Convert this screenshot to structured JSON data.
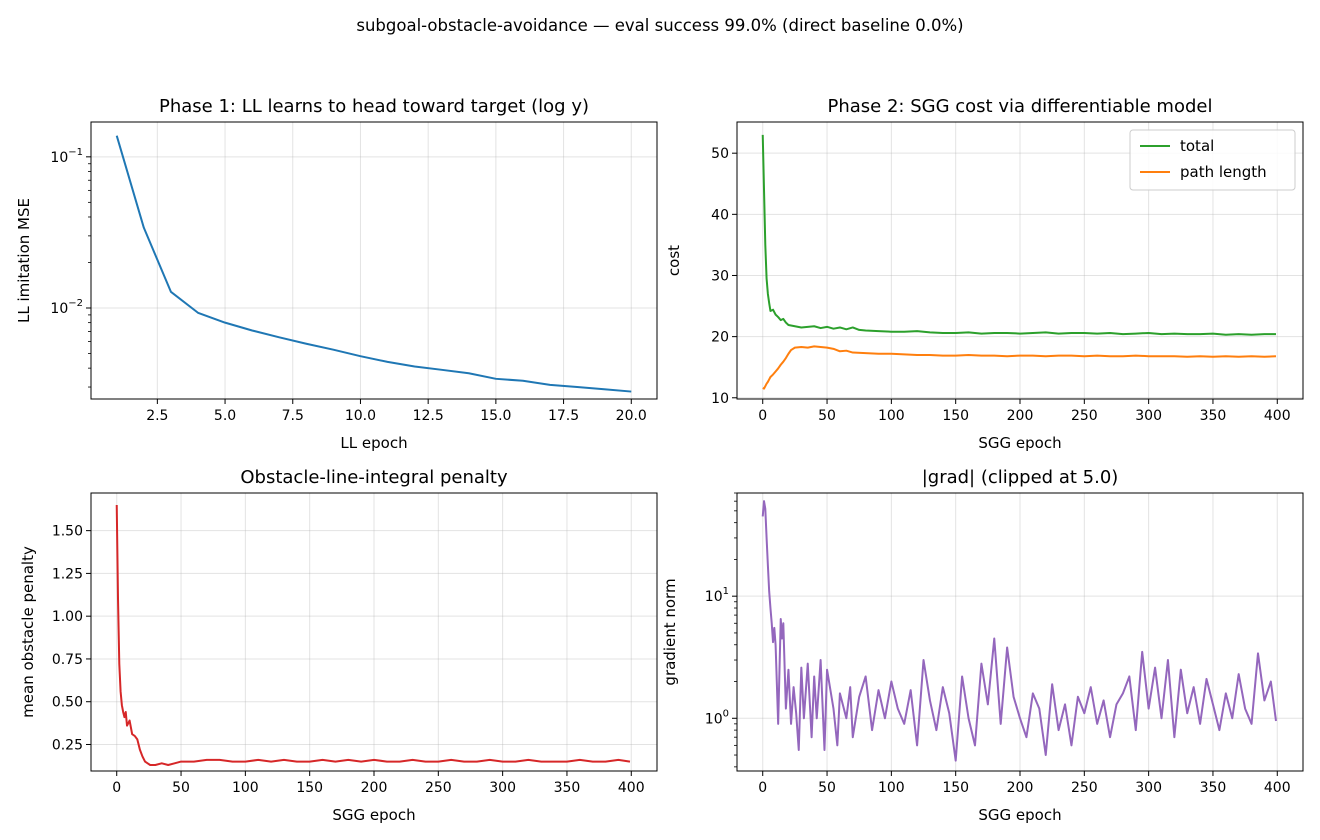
{
  "figure": {
    "suptitle": "subgoal-obstacle-avoidance — eval success 99.0%  (direct baseline 0.0%)"
  },
  "chart_data": [
    {
      "id": "p1",
      "type": "line",
      "title": "Phase 1: LL learns to head toward target (log y)",
      "xlabel": "LL epoch",
      "ylabel": "LL imitation MSE",
      "yscale": "log",
      "xlim": [
        0.05,
        20.95
      ],
      "ylim": [
        0.0025,
        0.17
      ],
      "xticks": [
        2.5,
        5.0,
        7.5,
        10.0,
        12.5,
        15.0,
        17.5,
        20.0
      ],
      "xtick_labels": [
        "2.5",
        "5.0",
        "7.5",
        "10.0",
        "12.5",
        "15.0",
        "17.5",
        "20.0"
      ],
      "yticks": [
        0.01,
        0.1
      ],
      "ytick_labels": [
        "10^-2",
        "10^-1"
      ],
      "grid": true,
      "series": [
        {
          "color": "#1f77b4",
          "x": [
            1,
            2,
            3,
            4,
            5,
            6,
            7,
            8,
            9,
            10,
            11,
            12,
            13,
            14,
            15,
            16,
            17,
            18,
            19,
            20
          ],
          "y": [
            0.138,
            0.034,
            0.0128,
            0.0093,
            0.008,
            0.0071,
            0.0064,
            0.0058,
            0.0053,
            0.0048,
            0.0044,
            0.0041,
            0.0039,
            0.0037,
            0.0034,
            0.0033,
            0.0031,
            0.003,
            0.0029,
            0.0028
          ]
        }
      ]
    },
    {
      "id": "p2",
      "type": "line",
      "title": "Phase 2: SGG cost via differentiable model",
      "xlabel": "SGG epoch",
      "ylabel": "cost",
      "yscale": "linear",
      "xlim": [
        -20,
        420
      ],
      "ylim": [
        9.8,
        55.1
      ],
      "xticks": [
        0,
        50,
        100,
        150,
        200,
        250,
        300,
        350,
        400
      ],
      "xtick_labels": [
        "0",
        "50",
        "100",
        "150",
        "200",
        "250",
        "300",
        "350",
        "400"
      ],
      "yticks": [
        10,
        20,
        30,
        40,
        50
      ],
      "ytick_labels": [
        "10",
        "20",
        "30",
        "40",
        "50"
      ],
      "grid": true,
      "legend": "top-right",
      "series": [
        {
          "name": "total",
          "color": "#2ca02c",
          "x": [
            0,
            1,
            2,
            3,
            4,
            5,
            6,
            8,
            10,
            12,
            14,
            16,
            18,
            20,
            25,
            30,
            35,
            40,
            45,
            50,
            55,
            60,
            65,
            70,
            75,
            80,
            90,
            100,
            110,
            120,
            130,
            140,
            150,
            160,
            170,
            180,
            190,
            200,
            210,
            220,
            230,
            240,
            250,
            260,
            270,
            280,
            290,
            300,
            310,
            320,
            330,
            340,
            350,
            360,
            370,
            380,
            390,
            399
          ],
          "y": [
            53.0,
            44.0,
            35.0,
            29.5,
            27.0,
            25.5,
            24.2,
            24.4,
            23.6,
            23.2,
            22.7,
            22.9,
            22.3,
            21.9,
            21.7,
            21.5,
            21.6,
            21.7,
            21.4,
            21.6,
            21.3,
            21.5,
            21.2,
            21.5,
            21.1,
            21.0,
            20.9,
            20.8,
            20.8,
            20.9,
            20.7,
            20.6,
            20.6,
            20.7,
            20.5,
            20.6,
            20.6,
            20.5,
            20.6,
            20.7,
            20.5,
            20.6,
            20.6,
            20.5,
            20.6,
            20.4,
            20.5,
            20.6,
            20.4,
            20.5,
            20.4,
            20.4,
            20.5,
            20.3,
            20.4,
            20.3,
            20.4,
            20.4
          ]
        },
        {
          "name": "path length",
          "color": "#ff7f0e",
          "x": [
            0,
            1,
            2,
            3,
            4,
            5,
            6,
            8,
            10,
            12,
            14,
            16,
            18,
            20,
            22,
            25,
            30,
            35,
            40,
            45,
            50,
            55,
            60,
            65,
            70,
            80,
            90,
            100,
            110,
            120,
            130,
            140,
            150,
            160,
            170,
            180,
            190,
            200,
            210,
            220,
            230,
            240,
            250,
            260,
            270,
            280,
            290,
            300,
            310,
            320,
            330,
            340,
            350,
            360,
            370,
            380,
            390,
            399
          ],
          "y": [
            11.6,
            11.5,
            11.9,
            12.3,
            12.6,
            13.0,
            13.4,
            13.8,
            14.3,
            14.8,
            15.4,
            15.9,
            16.5,
            17.2,
            17.8,
            18.2,
            18.3,
            18.2,
            18.4,
            18.3,
            18.2,
            18.0,
            17.6,
            17.7,
            17.4,
            17.3,
            17.2,
            17.2,
            17.1,
            17.0,
            17.0,
            16.9,
            16.9,
            17.0,
            16.9,
            16.9,
            16.8,
            16.9,
            16.9,
            16.8,
            16.9,
            16.9,
            16.8,
            16.9,
            16.8,
            16.8,
            16.9,
            16.8,
            16.8,
            16.8,
            16.7,
            16.8,
            16.7,
            16.8,
            16.7,
            16.8,
            16.7,
            16.8
          ]
        }
      ]
    },
    {
      "id": "p3",
      "type": "line",
      "title": "Obstacle-line-integral penalty",
      "xlabel": "SGG epoch",
      "ylabel": "mean obstacle penalty",
      "yscale": "linear",
      "xlim": [
        -20,
        420
      ],
      "ylim": [
        0.095,
        1.72
      ],
      "xticks": [
        0,
        50,
        100,
        150,
        200,
        250,
        300,
        350,
        400
      ],
      "xtick_labels": [
        "0",
        "50",
        "100",
        "150",
        "200",
        "250",
        "300",
        "350",
        "400"
      ],
      "yticks": [
        0.25,
        0.5,
        0.75,
        1.0,
        1.25,
        1.5
      ],
      "ytick_labels": [
        "0.25",
        "0.50",
        "0.75",
        "1.00",
        "1.25",
        "1.50"
      ],
      "grid": true,
      "series": [
        {
          "color": "#d62728",
          "x": [
            0,
            1,
            2,
            3,
            4,
            5,
            6,
            7,
            8,
            10,
            12,
            14,
            16,
            18,
            20,
            22,
            24,
            26,
            28,
            30,
            35,
            40,
            45,
            50,
            60,
            70,
            80,
            90,
            100,
            110,
            120,
            130,
            140,
            150,
            160,
            170,
            180,
            190,
            200,
            210,
            220,
            230,
            240,
            250,
            260,
            270,
            280,
            290,
            300,
            310,
            320,
            330,
            340,
            350,
            360,
            370,
            380,
            390,
            399
          ],
          "y": [
            1.65,
            1.1,
            0.72,
            0.56,
            0.48,
            0.44,
            0.41,
            0.44,
            0.36,
            0.39,
            0.31,
            0.3,
            0.28,
            0.22,
            0.18,
            0.15,
            0.14,
            0.13,
            0.13,
            0.13,
            0.14,
            0.13,
            0.14,
            0.15,
            0.15,
            0.16,
            0.16,
            0.15,
            0.15,
            0.16,
            0.15,
            0.16,
            0.15,
            0.15,
            0.16,
            0.15,
            0.16,
            0.15,
            0.16,
            0.15,
            0.15,
            0.16,
            0.15,
            0.15,
            0.16,
            0.15,
            0.15,
            0.16,
            0.15,
            0.15,
            0.16,
            0.15,
            0.15,
            0.15,
            0.16,
            0.15,
            0.15,
            0.16,
            0.15
          ]
        }
      ]
    },
    {
      "id": "p4",
      "type": "line",
      "title": "|grad| (clipped at 5.0)",
      "xlabel": "SGG epoch",
      "ylabel": "gradient norm",
      "yscale": "log",
      "xlim": [
        -20,
        420
      ],
      "ylim": [
        0.37,
        70
      ],
      "xticks": [
        0,
        50,
        100,
        150,
        200,
        250,
        300,
        350,
        400
      ],
      "xtick_labels": [
        "0",
        "50",
        "100",
        "150",
        "200",
        "250",
        "300",
        "350",
        "400"
      ],
      "yticks": [
        1,
        10
      ],
      "ytick_labels": [
        "10^0",
        "10^1"
      ],
      "grid": true,
      "series": [
        {
          "color": "#9467bd",
          "x": [
            0,
            1,
            2,
            3,
            4,
            5,
            6,
            7,
            8,
            9,
            10,
            12,
            14,
            15,
            16,
            18,
            20,
            22,
            24,
            26,
            28,
            30,
            32,
            35,
            38,
            40,
            42,
            45,
            48,
            50,
            55,
            58,
            60,
            65,
            68,
            70,
            75,
            80,
            85,
            90,
            95,
            100,
            105,
            110,
            115,
            120,
            125,
            130,
            135,
            140,
            145,
            150,
            155,
            160,
            165,
            170,
            175,
            180,
            185,
            190,
            195,
            200,
            205,
            210,
            215,
            220,
            225,
            230,
            235,
            240,
            245,
            250,
            255,
            260,
            265,
            270,
            275,
            280,
            285,
            290,
            295,
            300,
            305,
            310,
            315,
            320,
            325,
            330,
            335,
            340,
            345,
            350,
            355,
            360,
            365,
            370,
            375,
            380,
            385,
            390,
            395,
            399
          ],
          "y": [
            45,
            60,
            52,
            30,
            18,
            11,
            8,
            6,
            4.2,
            5.5,
            4.0,
            0.9,
            6.5,
            4.5,
            6.0,
            1.2,
            2.5,
            0.9,
            1.8,
            1.1,
            0.55,
            2.6,
            1.0,
            2.8,
            0.7,
            2.2,
            1.0,
            3.0,
            0.55,
            2.5,
            1.2,
            0.6,
            1.6,
            1.0,
            1.8,
            0.7,
            1.5,
            2.2,
            0.8,
            1.7,
            1.0,
            2.0,
            1.2,
            0.9,
            1.7,
            0.6,
            3.0,
            1.4,
            0.8,
            1.8,
            1.1,
            0.45,
            2.2,
            1.0,
            0.6,
            2.8,
            1.3,
            4.5,
            0.9,
            3.8,
            1.5,
            1.0,
            0.7,
            1.6,
            1.2,
            0.5,
            1.9,
            0.8,
            1.3,
            0.6,
            1.5,
            1.1,
            1.8,
            0.9,
            1.4,
            0.7,
            1.3,
            1.6,
            2.2,
            0.8,
            3.5,
            1.2,
            2.6,
            1.0,
            3.0,
            0.7,
            2.5,
            1.1,
            1.8,
            0.9,
            2.1,
            1.3,
            0.8,
            1.6,
            1.0,
            2.3,
            1.2,
            0.9,
            3.4,
            1.4,
            2.0,
            0.95
          ]
        }
      ]
    }
  ]
}
